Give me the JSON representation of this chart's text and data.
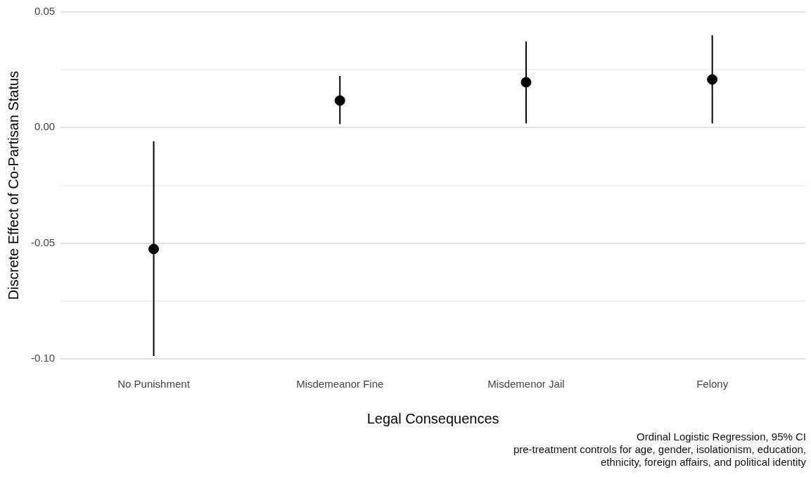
{
  "chart_data": {
    "type": "scatter",
    "xlabel": "Legal Consequences",
    "ylabel": "Discrete Effect of Co-Partisan Status",
    "categories": [
      "No Punishment",
      "Misdemeanor Fine",
      "Misdemenor Jail",
      "Felony"
    ],
    "values": [
      -0.0525,
      0.0117,
      0.0196,
      0.0208
    ],
    "errors": [
      [
        -0.0988,
        -0.0059
      ],
      [
        0.0015,
        0.0223
      ],
      [
        0.0018,
        0.0372
      ],
      [
        0.0018,
        0.0399
      ]
    ],
    "color": "#000000",
    "marker": "circle",
    "ylim": [
      -0.1,
      0.05
    ],
    "yticks": [
      {
        "value": -0.1,
        "label": "-0.10"
      },
      {
        "value": -0.075,
        "label": null
      },
      {
        "value": -0.05,
        "label": "-0.05"
      },
      {
        "value": -0.025,
        "label": null
      },
      {
        "value": 0,
        "label": "0.00"
      },
      {
        "value": 0.025,
        "label": null
      },
      {
        "value": 0.05,
        "label": "0.05"
      }
    ],
    "grid": "y",
    "legend": false,
    "annotations": [
      "Ordinal Logistic Regression, 95% CI",
      "pre-treatment controls for age, gender, isolationism, education,",
      "ethnicity, foreign affairs, and political identity"
    ]
  }
}
